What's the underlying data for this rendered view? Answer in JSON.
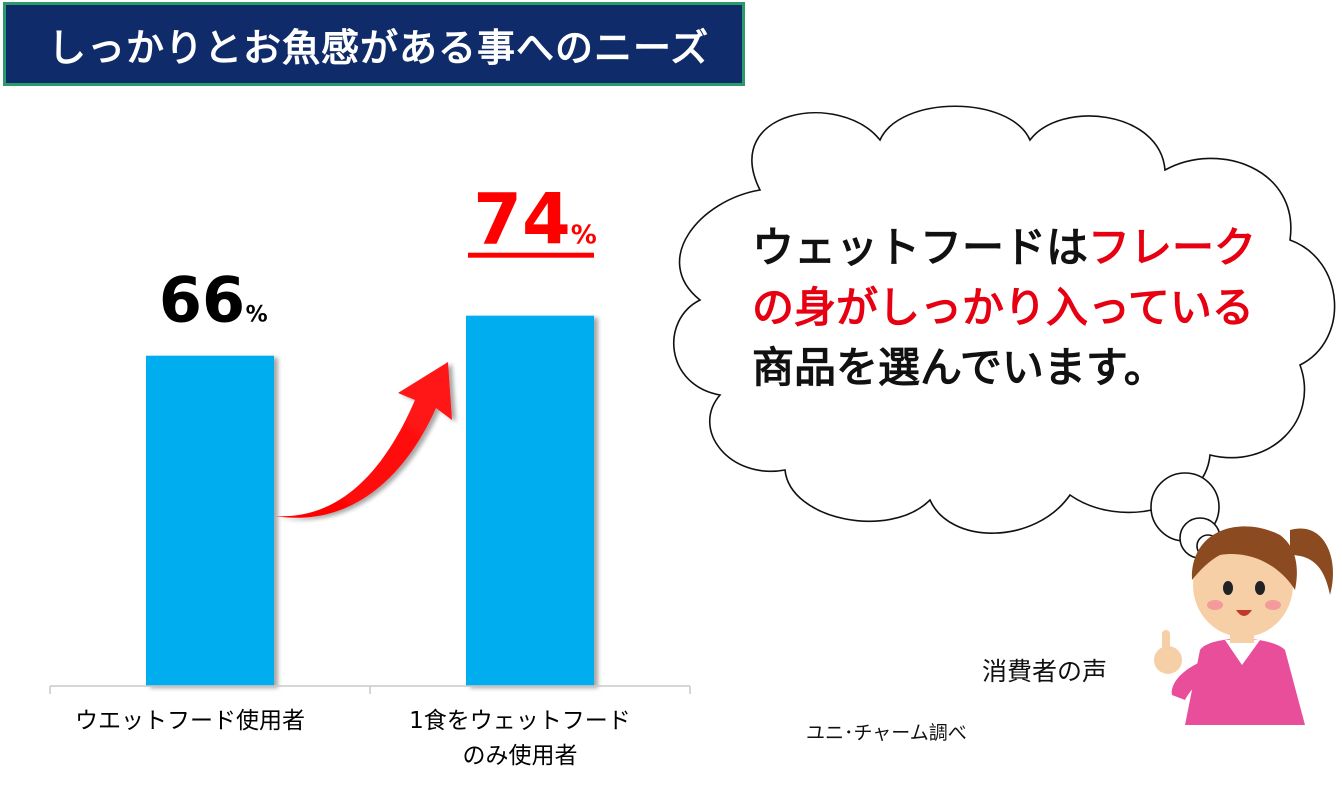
{
  "title": "しっかりとお魚感がある事へのニーズ",
  "chart_data": {
    "type": "bar",
    "categories": [
      "ウエットフード使用者",
      "1食をウェットフード のみ使用者"
    ],
    "category_lines": [
      [
        "ウエットフード使用者"
      ],
      [
        "1食をウェットフード",
        "のみ使用者"
      ]
    ],
    "values": [
      66,
      74
    ],
    "value_labels": [
      "66",
      "74"
    ],
    "unit": "%",
    "ylim": [
      0,
      100
    ],
    "bar_color": "#00adef",
    "highlight_color": "#ff0000",
    "highlight_index": 1
  },
  "bubble": {
    "line1_black": "ウェットフードは",
    "line1_red": "フレーク",
    "line2_red": "の身がしっかり入っている",
    "line3": "商品を選んでいます。"
  },
  "consumer_label": "消費者の声",
  "source_label": "ユニ･チャーム調べ",
  "colors": {
    "title_bg": "#0f2b69",
    "title_border": "#2a9a6a",
    "accent_red": "#e60012",
    "bar": "#00adef"
  }
}
